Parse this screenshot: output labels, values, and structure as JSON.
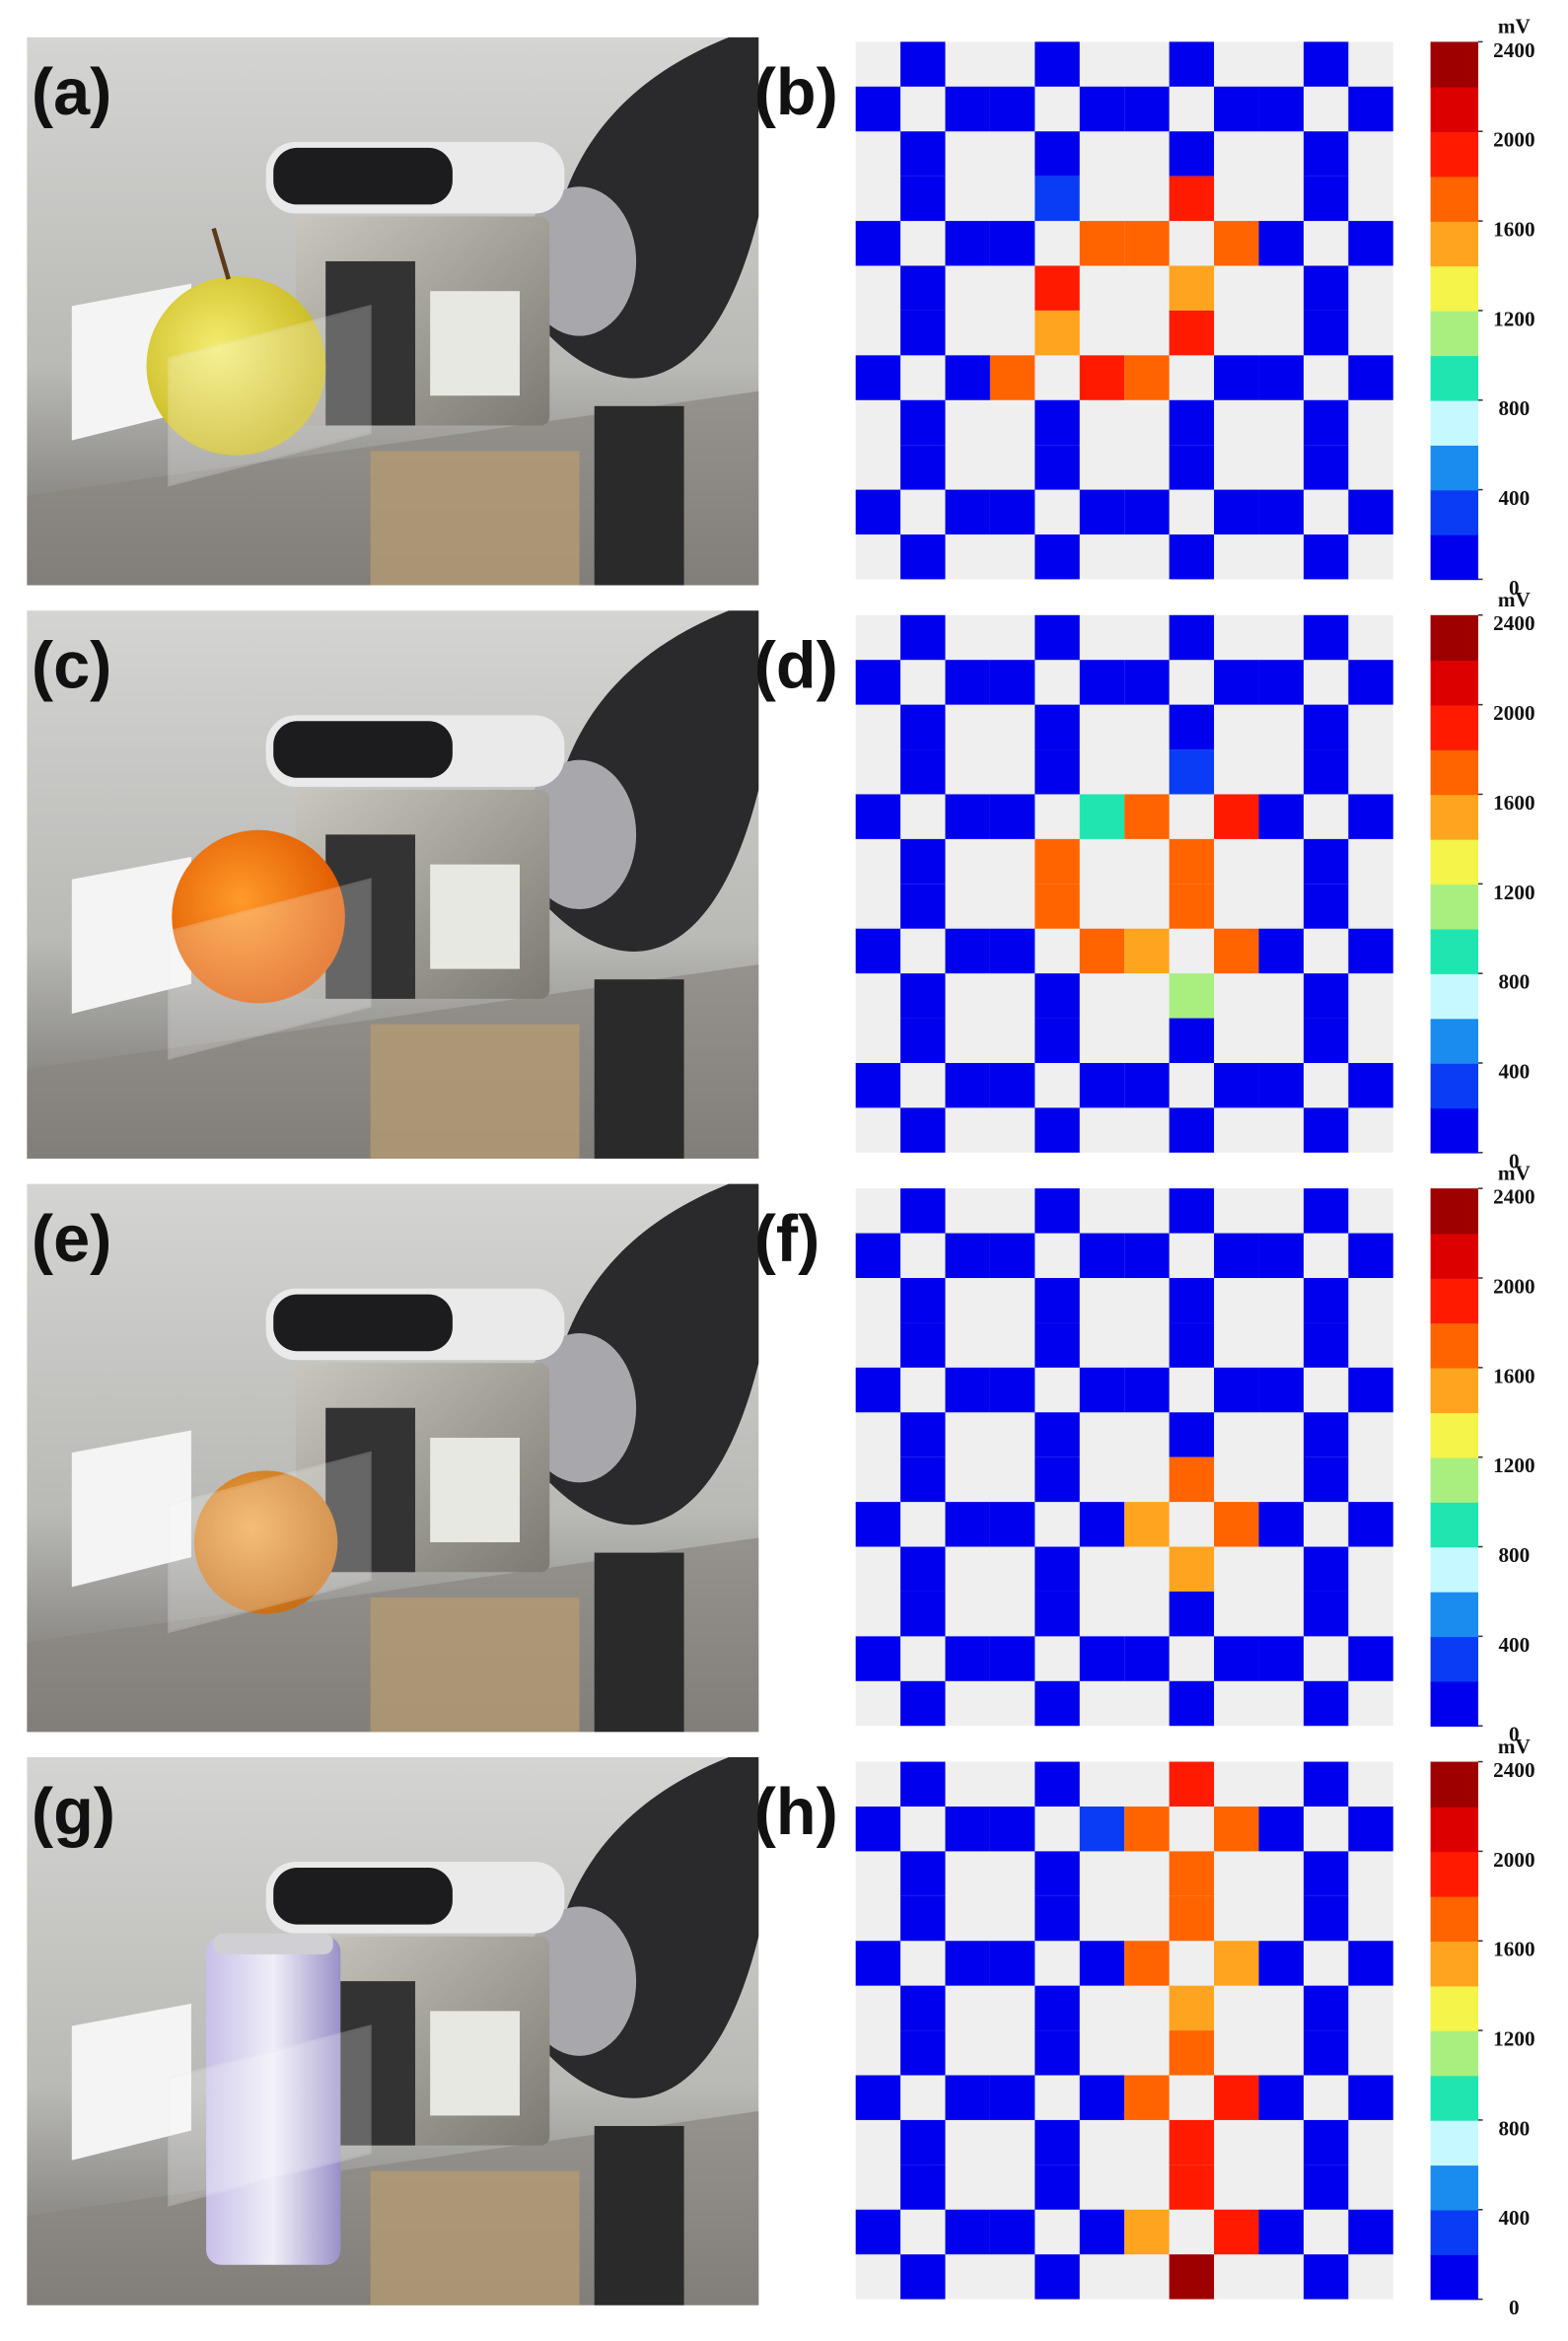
{
  "photos": [
    {
      "label": "(a)"
    },
    {
      "label": "(c)"
    },
    {
      "label": "(e)"
    },
    {
      "label": "(g)"
    }
  ],
  "chart_data": [
    {
      "type": "heatmap",
      "label": "(b)",
      "colorbar": {
        "title": "mV",
        "lim": [
          0,
          2400
        ],
        "ticks": [
          0,
          400,
          800,
          1200,
          1600,
          2000,
          2400
        ],
        "colors": [
          "#0000ee",
          "#0a3cf5",
          "#1a8cf0",
          "#c6f8ff",
          "#1fe6b0",
          "#a8ef80",
          "#f4f44a",
          "#ffa41e",
          "#ff6400",
          "#ff1a00",
          "#dd0000",
          "#9e0000"
        ]
      },
      "values": [
        [
          null,
          100,
          null,
          null,
          100,
          null,
          null,
          100,
          null,
          null,
          100,
          null
        ],
        [
          100,
          null,
          100,
          100,
          null,
          100,
          100,
          null,
          100,
          100,
          null,
          100
        ],
        [
          null,
          100,
          null,
          null,
          100,
          null,
          null,
          100,
          null,
          null,
          100,
          null
        ],
        [
          null,
          100,
          null,
          null,
          300,
          null,
          null,
          1900,
          null,
          null,
          100,
          null
        ],
        [
          100,
          null,
          100,
          100,
          null,
          1700,
          1700,
          null,
          1700,
          100,
          null,
          100
        ],
        [
          null,
          100,
          null,
          null,
          1900,
          null,
          null,
          1500,
          null,
          null,
          100,
          null
        ],
        [
          null,
          100,
          null,
          null,
          1500,
          null,
          null,
          1900,
          null,
          null,
          100,
          null
        ],
        [
          100,
          null,
          100,
          1700,
          null,
          1900,
          1700,
          null,
          100,
          100,
          null,
          100
        ],
        [
          null,
          100,
          null,
          null,
          100,
          null,
          null,
          100,
          null,
          null,
          100,
          null
        ],
        [
          null,
          100,
          null,
          null,
          100,
          null,
          null,
          100,
          null,
          null,
          100,
          null
        ],
        [
          100,
          null,
          100,
          100,
          null,
          100,
          100,
          null,
          100,
          100,
          null,
          100
        ],
        [
          null,
          100,
          null,
          null,
          100,
          null,
          null,
          100,
          null,
          null,
          100,
          null
        ]
      ]
    },
    {
      "type": "heatmap",
      "label": "(d)",
      "colorbar": {
        "title": "mV",
        "lim": [
          0,
          2400
        ],
        "ticks": [
          0,
          400,
          800,
          1200,
          1600,
          2000,
          2400
        ],
        "colors": [
          "#0000ee",
          "#0a3cf5",
          "#1a8cf0",
          "#c6f8ff",
          "#1fe6b0",
          "#a8ef80",
          "#f4f44a",
          "#ffa41e",
          "#ff6400",
          "#ff1a00",
          "#dd0000",
          "#9e0000"
        ]
      },
      "values": [
        [
          null,
          100,
          null,
          null,
          100,
          null,
          null,
          100,
          null,
          null,
          100,
          null
        ],
        [
          100,
          null,
          100,
          100,
          null,
          100,
          100,
          null,
          100,
          100,
          null,
          100
        ],
        [
          null,
          100,
          null,
          null,
          100,
          null,
          null,
          100,
          null,
          null,
          100,
          null
        ],
        [
          null,
          100,
          null,
          null,
          100,
          null,
          null,
          300,
          null,
          null,
          100,
          null
        ],
        [
          100,
          null,
          100,
          100,
          null,
          900,
          1700,
          null,
          1900,
          100,
          null,
          100
        ],
        [
          null,
          100,
          null,
          null,
          1700,
          null,
          null,
          1700,
          null,
          null,
          100,
          null
        ],
        [
          null,
          100,
          null,
          null,
          1700,
          null,
          null,
          1700,
          null,
          null,
          100,
          null
        ],
        [
          100,
          null,
          100,
          100,
          null,
          1700,
          1500,
          null,
          1700,
          100,
          null,
          100
        ],
        [
          null,
          100,
          null,
          null,
          100,
          null,
          null,
          1100,
          null,
          null,
          100,
          null
        ],
        [
          null,
          100,
          null,
          null,
          100,
          null,
          null,
          100,
          null,
          null,
          100,
          null
        ],
        [
          100,
          null,
          100,
          100,
          null,
          100,
          100,
          null,
          100,
          100,
          null,
          100
        ],
        [
          null,
          100,
          null,
          null,
          100,
          null,
          null,
          100,
          null,
          null,
          100,
          null
        ]
      ]
    },
    {
      "type": "heatmap",
      "label": "(f)",
      "colorbar": {
        "title": "mV",
        "lim": [
          0,
          2400
        ],
        "ticks": [
          0,
          400,
          800,
          1200,
          1600,
          2000,
          2400
        ],
        "colors": [
          "#0000ee",
          "#0a3cf5",
          "#1a8cf0",
          "#c6f8ff",
          "#1fe6b0",
          "#a8ef80",
          "#f4f44a",
          "#ffa41e",
          "#ff6400",
          "#ff1a00",
          "#dd0000",
          "#9e0000"
        ]
      },
      "values": [
        [
          null,
          100,
          null,
          null,
          100,
          null,
          null,
          100,
          null,
          null,
          100,
          null
        ],
        [
          100,
          null,
          100,
          100,
          null,
          100,
          100,
          null,
          100,
          100,
          null,
          100
        ],
        [
          null,
          100,
          null,
          null,
          100,
          null,
          null,
          100,
          null,
          null,
          100,
          null
        ],
        [
          null,
          100,
          null,
          null,
          100,
          null,
          null,
          100,
          null,
          null,
          100,
          null
        ],
        [
          100,
          null,
          100,
          100,
          null,
          100,
          100,
          null,
          100,
          100,
          null,
          100
        ],
        [
          null,
          100,
          null,
          null,
          100,
          null,
          null,
          100,
          null,
          null,
          100,
          null
        ],
        [
          null,
          100,
          null,
          null,
          100,
          null,
          null,
          1700,
          null,
          null,
          100,
          null
        ],
        [
          100,
          null,
          100,
          100,
          null,
          100,
          1500,
          null,
          1700,
          100,
          null,
          100
        ],
        [
          null,
          100,
          null,
          null,
          100,
          null,
          null,
          1500,
          null,
          null,
          100,
          null
        ],
        [
          null,
          100,
          null,
          null,
          100,
          null,
          null,
          100,
          null,
          null,
          100,
          null
        ],
        [
          100,
          null,
          100,
          100,
          null,
          100,
          100,
          null,
          100,
          100,
          null,
          100
        ],
        [
          null,
          100,
          null,
          null,
          100,
          null,
          null,
          100,
          null,
          null,
          100,
          null
        ]
      ]
    },
    {
      "type": "heatmap",
      "label": "(h)",
      "colorbar": {
        "title": "mV",
        "lim": [
          0,
          2400
        ],
        "ticks": [
          0,
          400,
          800,
          1200,
          1600,
          2000,
          2400
        ],
        "colors": [
          "#0000ee",
          "#0a3cf5",
          "#1a8cf0",
          "#c6f8ff",
          "#1fe6b0",
          "#a8ef80",
          "#f4f44a",
          "#ffa41e",
          "#ff6400",
          "#ff1a00",
          "#dd0000",
          "#9e0000"
        ]
      },
      "values": [
        [
          null,
          100,
          null,
          null,
          100,
          null,
          null,
          1900,
          null,
          null,
          100,
          null
        ],
        [
          100,
          null,
          100,
          100,
          null,
          300,
          1700,
          null,
          1700,
          100,
          null,
          100
        ],
        [
          null,
          100,
          null,
          null,
          100,
          null,
          null,
          1700,
          null,
          null,
          100,
          null
        ],
        [
          null,
          100,
          null,
          null,
          100,
          null,
          null,
          1700,
          null,
          null,
          100,
          null
        ],
        [
          100,
          null,
          100,
          100,
          null,
          100,
          1700,
          null,
          1500,
          100,
          null,
          100
        ],
        [
          null,
          100,
          null,
          null,
          100,
          null,
          null,
          1500,
          null,
          null,
          100,
          null
        ],
        [
          null,
          100,
          null,
          null,
          100,
          null,
          null,
          1700,
          null,
          null,
          100,
          null
        ],
        [
          100,
          null,
          100,
          100,
          null,
          100,
          1700,
          null,
          1900,
          100,
          null,
          100
        ],
        [
          null,
          100,
          null,
          null,
          100,
          null,
          null,
          1900,
          null,
          null,
          100,
          null
        ],
        [
          null,
          100,
          null,
          null,
          100,
          null,
          null,
          1900,
          null,
          null,
          100,
          null
        ],
        [
          100,
          null,
          100,
          100,
          null,
          100,
          1500,
          null,
          1900,
          100,
          null,
          100
        ],
        [
          null,
          100,
          null,
          null,
          100,
          null,
          null,
          2300,
          null,
          null,
          100,
          null
        ]
      ]
    }
  ]
}
